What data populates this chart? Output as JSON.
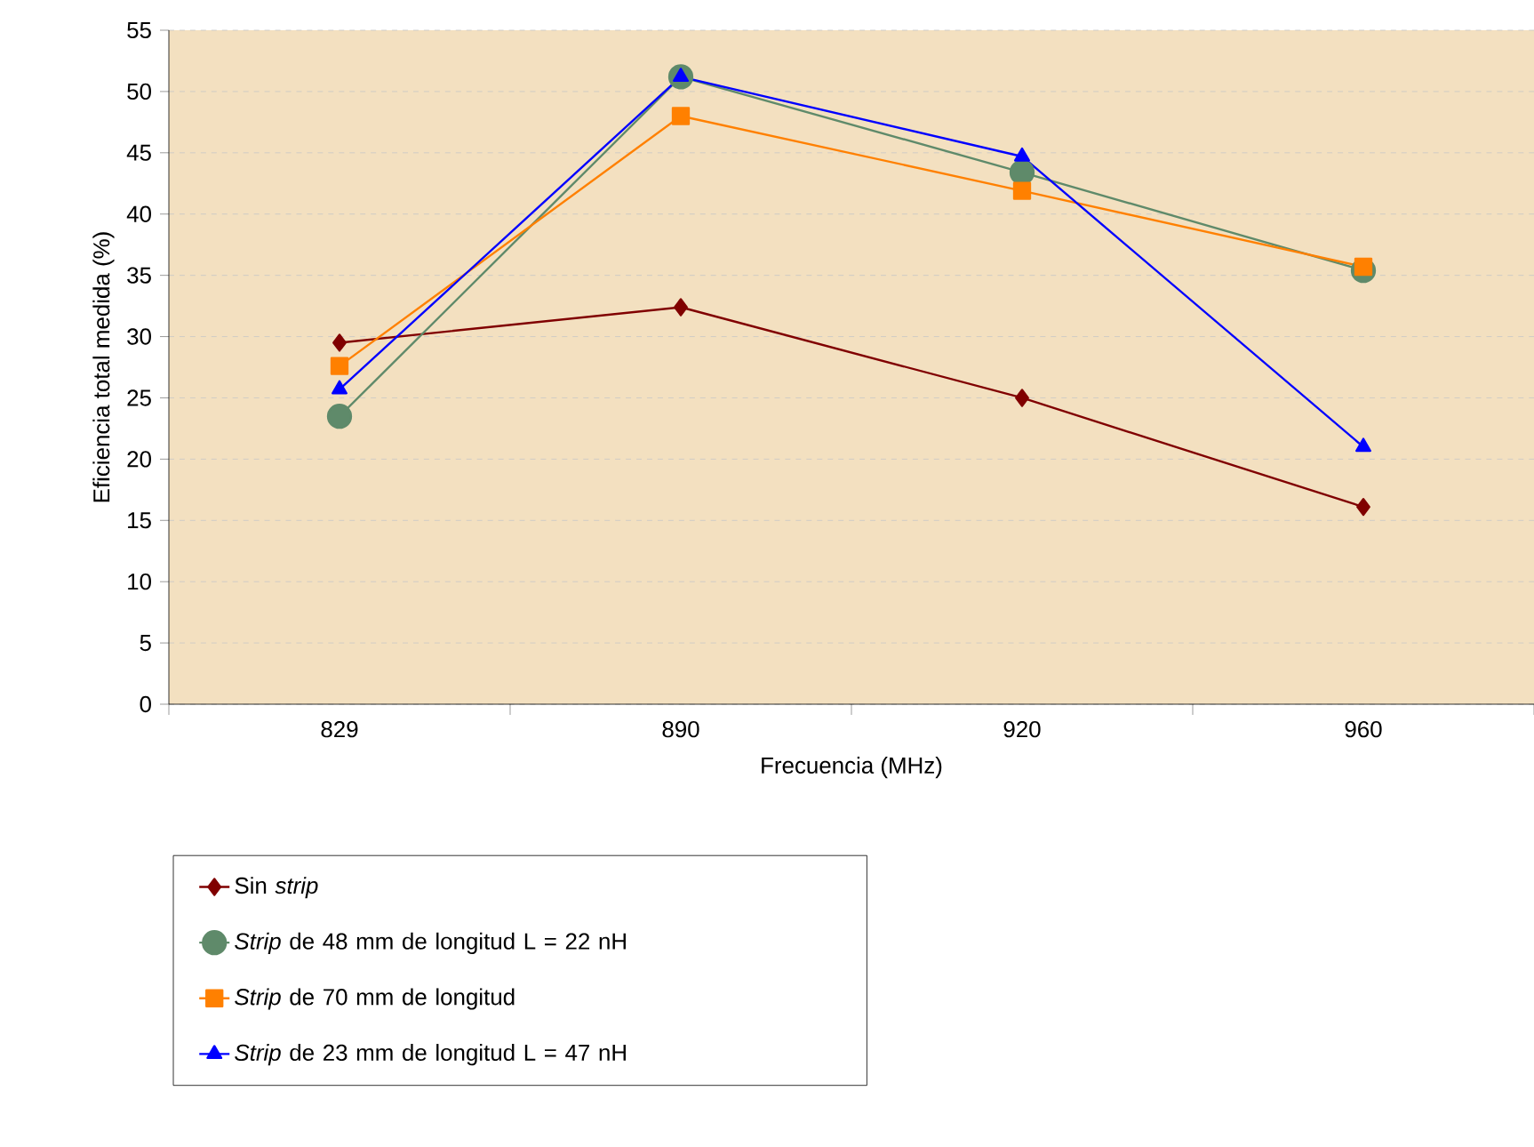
{
  "chart_data": {
    "type": "line",
    "xlabel": "Frecuencia (MHz)",
    "ylabel": "Eficiencia total medida (%)",
    "categories": [
      "829",
      "890",
      "920",
      "960"
    ],
    "ylim": [
      0,
      55
    ],
    "yticks": [
      0,
      5,
      10,
      15,
      20,
      25,
      30,
      35,
      40,
      45,
      50,
      55
    ],
    "grid": "y",
    "legend": "bottom",
    "line_style": "solid",
    "series": [
      {
        "name": "Sin *strip*",
        "color": "#800000",
        "marker": "diamond",
        "values": [
          29.5,
          32.4,
          25,
          16.1
        ]
      },
      {
        "name": "*Strip* de 48 mm de longitud L = 22 nH",
        "color": "#5f8a6a",
        "marker": "circle",
        "values": [
          23.5,
          51.2,
          43.4,
          35.4
        ]
      },
      {
        "name": "*Strip* de 70 mm de longitud",
        "color": "#ff8000",
        "marker": "square",
        "values": [
          27.6,
          48,
          41.9,
          35.7
        ]
      },
      {
        "name": "*Strip* de 23 mm de longitud L = 47 nH",
        "color": "#0000ff",
        "marker": "triangle",
        "values": [
          25.7,
          51.2,
          44.7,
          21
        ]
      }
    ]
  }
}
